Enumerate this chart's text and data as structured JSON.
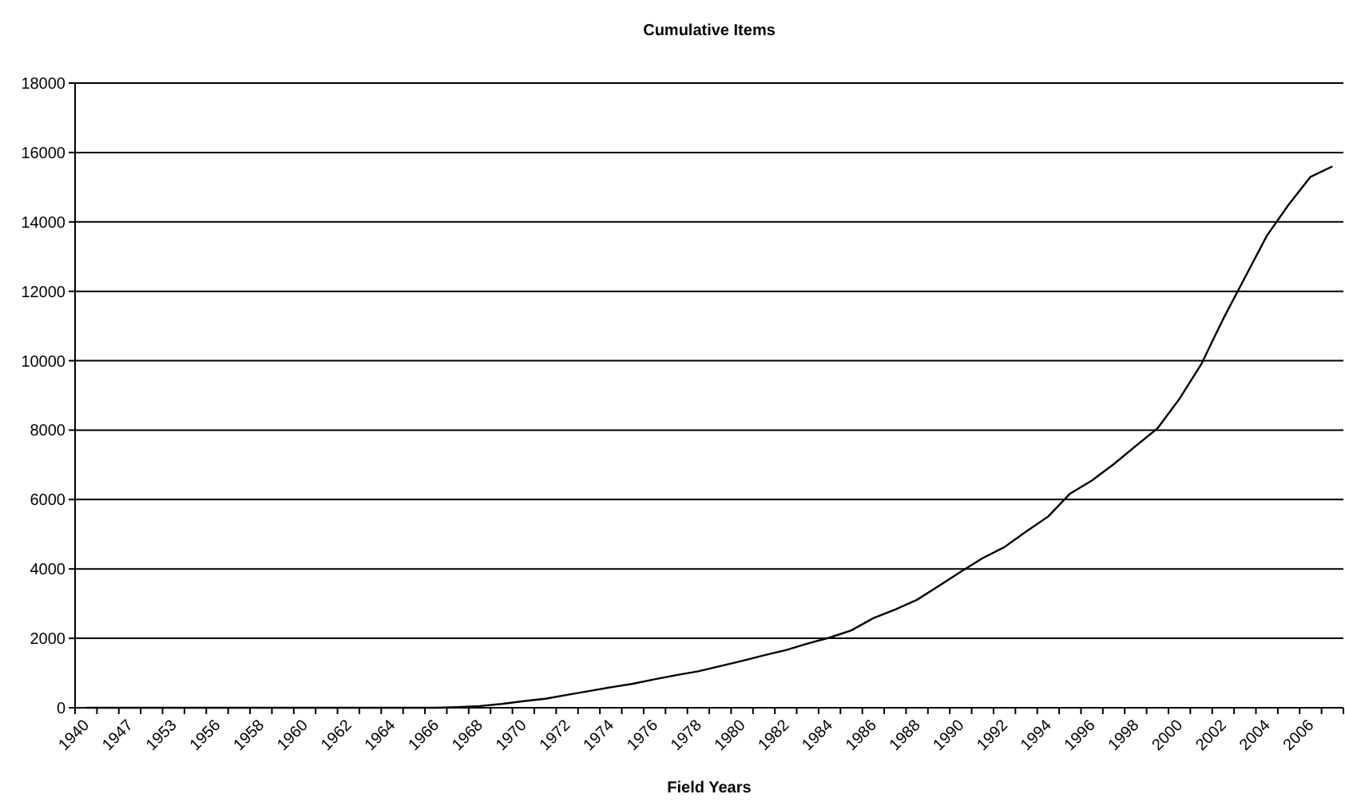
{
  "chart_data": {
    "type": "line",
    "title": "Cumulative Items",
    "xlabel": "Field Years",
    "categories": [
      "1940",
      null,
      "1947",
      null,
      "1953",
      null,
      "1956",
      null,
      "1958",
      null,
      "1960",
      null,
      "1962",
      null,
      "1964",
      null,
      "1966",
      null,
      "1968",
      null,
      "1970",
      null,
      "1972",
      null,
      "1974",
      null,
      "1976",
      null,
      "1978",
      null,
      "1980",
      null,
      "1982",
      null,
      "1984",
      null,
      "1986",
      null,
      "1988",
      null,
      "1990",
      null,
      "1992",
      null,
      "1994",
      null,
      "1996",
      null,
      "1998",
      null,
      "2000",
      null,
      "2002",
      null,
      "2004",
      null,
      "2006",
      null
    ],
    "series": [
      {
        "color": "#000000",
        "values": [
          0,
          0,
          0,
          0,
          0,
          0,
          0,
          0,
          0,
          0,
          0,
          0,
          0,
          0,
          0,
          0,
          0,
          20,
          50,
          110,
          190,
          260,
          370,
          480,
          590,
          690,
          820,
          940,
          1050,
          1200,
          1350,
          1510,
          1660,
          1850,
          2020,
          2230,
          2580,
          2830,
          3110,
          3510,
          3920,
          4310,
          4630,
          5080,
          5510,
          6170,
          6550,
          7020,
          7540,
          8050,
          8900,
          9900,
          11200,
          12400,
          13600,
          14500,
          15300,
          15600
        ]
      }
    ],
    "ylim": [
      0,
      18000
    ],
    "yticks": [
      0,
      2000,
      4000,
      6000,
      8000,
      10000,
      12000,
      14000,
      16000,
      18000
    ],
    "grid": "y",
    "marker": "none",
    "line_style": "solid"
  }
}
